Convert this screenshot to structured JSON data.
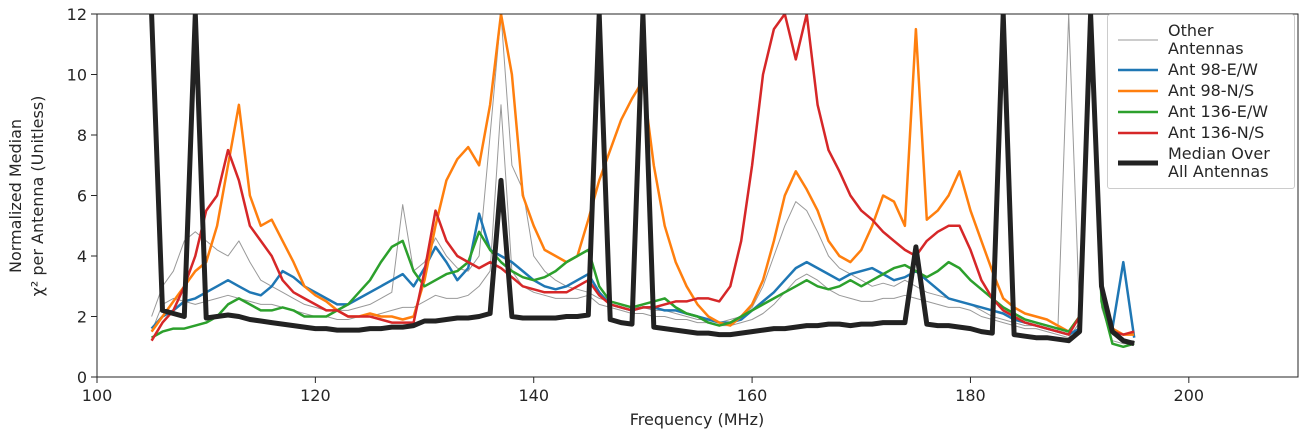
{
  "chart_data": {
    "type": "line",
    "x_label": "Frequency (MHz)",
    "y_label": [
      "Normalized Median",
      "χ² per Antenna (Unitless)"
    ],
    "xlim": [
      100,
      210
    ],
    "xticks": [
      100,
      120,
      140,
      160,
      180,
      200
    ],
    "ylim": [
      0,
      12
    ],
    "yticks": [
      0,
      2,
      4,
      6,
      8,
      10,
      12
    ],
    "grid": false,
    "legend": "upper right",
    "x": [
      105,
      106,
      107,
      108,
      109,
      110,
      111,
      112,
      113,
      114,
      115,
      116,
      117,
      118,
      119,
      120,
      121,
      122,
      123,
      124,
      125,
      126,
      127,
      128,
      129,
      130,
      131,
      132,
      133,
      134,
      135,
      136,
      137,
      138,
      139,
      140,
      141,
      142,
      143,
      144,
      145,
      146,
      147,
      148,
      149,
      150,
      151,
      152,
      153,
      154,
      155,
      156,
      157,
      158,
      159,
      160,
      161,
      162,
      163,
      164,
      165,
      166,
      167,
      168,
      169,
      170,
      171,
      172,
      173,
      174,
      175,
      176,
      177,
      178,
      179,
      180,
      181,
      182,
      183,
      184,
      185,
      186,
      187,
      188,
      189,
      190,
      191,
      192,
      193,
      194,
      195
    ],
    "series": [
      {
        "name": "Other Antennas",
        "color": "#999999",
        "width": 1,
        "values": [
          2,
          3,
          3.5,
          4.5,
          4.8,
          4.5,
          4.2,
          4,
          4.5,
          3.8,
          3.2,
          3,
          2.8,
          2.6,
          2.4,
          2.3,
          2.2,
          2.2,
          2.2,
          2.3,
          2.4,
          2.6,
          2.8,
          5.7,
          3.5,
          3.8,
          4.6,
          4,
          3.6,
          3.5,
          4,
          8,
          12,
          7,
          6.2,
          4,
          3.5,
          3.2,
          3,
          2.9,
          2.8,
          2.6,
          2.5,
          2.4,
          2.3,
          2.3,
          2.2,
          2.2,
          2.1,
          2,
          1.9,
          1.9,
          1.8,
          1.9,
          2,
          2.3,
          3,
          4,
          5,
          5.8,
          5.5,
          4.8,
          4,
          3.6,
          3.4,
          3.2,
          3,
          3.1,
          3,
          3.2,
          3,
          2.8,
          2.7,
          2.6,
          2.5,
          2.4,
          2.2,
          2,
          1.9,
          1.8,
          1.7,
          1.7,
          1.6,
          1.5,
          12,
          2,
          12,
          2.5,
          1.4,
          1.2,
          1.2
        ]
      },
      {
        "color": "#999999",
        "width": 1,
        "values": [
          1.5,
          2.4,
          2.6,
          2.5,
          2.4,
          2.5,
          2.6,
          2.7,
          2.6,
          2.5,
          2.4,
          2.4,
          2.3,
          2.2,
          2.1,
          2,
          2,
          1.9,
          1.9,
          2,
          2,
          2.1,
          2.2,
          2.3,
          2.3,
          2.5,
          2.7,
          2.6,
          2.6,
          2.7,
          3,
          3.5,
          9,
          3.5,
          3,
          2.8,
          2.7,
          2.6,
          2.6,
          2.6,
          2.7,
          2.4,
          2.3,
          2.2,
          2.1,
          2.1,
          2,
          2,
          1.9,
          1.9,
          1.8,
          1.8,
          1.7,
          1.7,
          1.8,
          1.9,
          2.1,
          2.4,
          2.8,
          3.2,
          3.4,
          3.2,
          2.9,
          2.7,
          2.6,
          2.5,
          2.5,
          2.6,
          2.6,
          2.7,
          2.6,
          2.5,
          2.4,
          2.3,
          2.3,
          2.2,
          2,
          1.9,
          1.8,
          1.7,
          1.6,
          1.6,
          1.5,
          1.4,
          1.3,
          1.8,
          12,
          2.3,
          1.2,
          1.1,
          1.1
        ]
      },
      {
        "name": "Ant 98-E/W",
        "color": "#1f77b4",
        "width": 2.5,
        "values": [
          1.6,
          2,
          2.2,
          2.5,
          2.6,
          2.8,
          3,
          3.2,
          3,
          2.8,
          2.7,
          3,
          3.5,
          3.3,
          3,
          2.8,
          2.6,
          2.4,
          2.4,
          2.6,
          2.8,
          3,
          3.2,
          3.4,
          3,
          3.6,
          4.3,
          3.8,
          3.2,
          3.6,
          5.4,
          4.2,
          4,
          3.8,
          3.5,
          3.2,
          3,
          2.9,
          3,
          3.2,
          3.4,
          2.8,
          2.4,
          2.3,
          2.2,
          2.3,
          2.3,
          2.2,
          2.2,
          2.1,
          2,
          1.9,
          1.8,
          1.8,
          1.9,
          2.2,
          2.5,
          2.8,
          3.2,
          3.6,
          3.8,
          3.6,
          3.4,
          3.2,
          3.4,
          3.5,
          3.6,
          3.4,
          3.2,
          3.3,
          3.5,
          3.2,
          2.9,
          2.6,
          2.5,
          2.4,
          2.3,
          2.2,
          2.1,
          1.9,
          1.8,
          1.7,
          1.6,
          1.5,
          1.4,
          1.6,
          12,
          3,
          1.6,
          3.8,
          1.3
        ]
      },
      {
        "name": "Ant 98-N/S",
        "color": "#ff7f0e",
        "width": 2.5,
        "values": [
          1.5,
          2,
          2.5,
          3,
          3.5,
          3.8,
          5,
          7,
          9,
          6,
          5,
          5.2,
          4.5,
          3.8,
          3,
          2.7,
          2.5,
          2.2,
          2,
          2,
          2.1,
          2,
          2,
          1.9,
          2,
          3.2,
          5,
          6.5,
          7.2,
          7.6,
          7,
          9,
          12,
          10,
          6,
          5,
          4.2,
          4,
          3.8,
          4,
          5.2,
          6.5,
          7.5,
          8.5,
          9.2,
          9.8,
          7,
          5,
          3.8,
          3,
          2.4,
          2,
          1.8,
          1.7,
          2,
          2.4,
          3.2,
          4.5,
          6,
          6.8,
          6.2,
          5.5,
          4.5,
          4,
          3.8,
          4.2,
          5,
          6,
          5.8,
          5,
          11.5,
          5.2,
          5.5,
          6,
          6.8,
          5.5,
          4.5,
          3.5,
          2.6,
          2.3,
          2.1,
          2,
          1.9,
          1.7,
          1.5,
          2,
          12,
          3,
          1.6,
          1.4,
          1.4
        ]
      },
      {
        "name": "Ant 136-E/W",
        "color": "#2ca02c",
        "width": 2.5,
        "values": [
          1.3,
          1.5,
          1.6,
          1.6,
          1.7,
          1.8,
          2,
          2.4,
          2.6,
          2.4,
          2.2,
          2.2,
          2.3,
          2.2,
          2,
          2,
          2,
          2.2,
          2.4,
          2.8,
          3.2,
          3.8,
          4.3,
          4.5,
          3.5,
          3,
          3.2,
          3.4,
          3.5,
          3.8,
          4.8,
          4.2,
          3.8,
          3.5,
          3.3,
          3.2,
          3.3,
          3.5,
          3.8,
          4,
          4.2,
          3,
          2.5,
          2.4,
          2.3,
          2.4,
          2.5,
          2.6,
          2.3,
          2.1,
          2,
          1.8,
          1.7,
          1.8,
          2,
          2.2,
          2.4,
          2.6,
          2.8,
          3,
          3.2,
          3,
          2.9,
          3,
          3.2,
          3,
          3.2,
          3.4,
          3.6,
          3.7,
          3.5,
          3.3,
          3.5,
          3.8,
          3.6,
          3.2,
          2.9,
          2.6,
          2.3,
          2.1,
          1.9,
          1.8,
          1.7,
          1.6,
          1.5,
          2,
          12,
          2.5,
          1.1,
          1,
          1.1
        ]
      },
      {
        "name": "Ant 136-N/S",
        "color": "#d62728",
        "width": 2.5,
        "values": [
          1.2,
          1.8,
          2.2,
          3,
          4,
          5.5,
          6,
          7.5,
          6.5,
          5,
          4.5,
          4,
          3.2,
          2.8,
          2.6,
          2.4,
          2.2,
          2.2,
          2,
          2,
          2,
          1.9,
          1.8,
          1.8,
          1.8,
          3.5,
          5.5,
          4.5,
          4,
          3.8,
          3.6,
          3.8,
          3.6,
          3.3,
          3,
          2.9,
          2.8,
          2.8,
          2.8,
          3,
          3.2,
          2.7,
          2.4,
          2.3,
          2.2,
          2.3,
          2.3,
          2.4,
          2.5,
          2.5,
          2.6,
          2.6,
          2.5,
          3,
          4.5,
          7,
          10,
          11.5,
          12,
          10.5,
          12,
          9,
          7.5,
          6.8,
          6,
          5.5,
          5.2,
          4.8,
          4.5,
          4.2,
          4,
          4.5,
          4.8,
          5,
          5,
          4.2,
          3.2,
          2.6,
          2.2,
          2,
          1.8,
          1.7,
          1.6,
          1.5,
          1.4,
          2,
          12,
          3,
          1.5,
          1.4,
          1.5
        ]
      },
      {
        "name": "Median Over All Antennas",
        "color": "#222222",
        "width": 5,
        "values": [
          12,
          2.2,
          2.1,
          2,
          12,
          1.95,
          2,
          2.05,
          2,
          1.9,
          1.85,
          1.8,
          1.75,
          1.7,
          1.65,
          1.6,
          1.6,
          1.55,
          1.55,
          1.55,
          1.6,
          1.6,
          1.65,
          1.65,
          1.7,
          1.85,
          1.85,
          1.9,
          1.95,
          1.95,
          2,
          2.1,
          6.5,
          2,
          1.95,
          1.95,
          1.95,
          1.95,
          2,
          2,
          2.05,
          12,
          1.9,
          1.8,
          1.75,
          12,
          1.65,
          1.6,
          1.55,
          1.5,
          1.45,
          1.45,
          1.4,
          1.4,
          1.45,
          1.5,
          1.55,
          1.6,
          1.6,
          1.65,
          1.7,
          1.7,
          1.75,
          1.75,
          1.7,
          1.75,
          1.75,
          1.8,
          1.8,
          1.8,
          4.3,
          1.75,
          1.7,
          1.7,
          1.65,
          1.6,
          1.5,
          1.45,
          12,
          1.4,
          1.35,
          1.3,
          1.3,
          1.25,
          1.2,
          1.5,
          12,
          3,
          1.5,
          1.2,
          1.1
        ]
      }
    ]
  }
}
